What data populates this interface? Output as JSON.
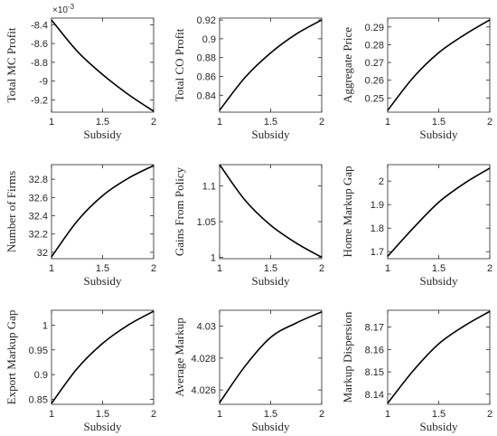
{
  "chart_data": [
    {
      "type": "line",
      "xlabel": "Subsidy",
      "ylabel": "Total MC Profit",
      "xlim": [
        1,
        2
      ],
      "xticks": [
        "1",
        "1.5",
        "2"
      ],
      "ylim": [
        -0.00933,
        -0.00833
      ],
      "yticks": [
        -0.0084,
        -0.0086,
        -0.0088,
        -0.009,
        -0.0092
      ],
      "ytick_labels": [
        "-8.4",
        "-8.6",
        "-8.8",
        "-9",
        "-9.2"
      ],
      "exponent": "×10",
      "exponent_power": "-3",
      "x": [
        1,
        1.25,
        1.5,
        1.75,
        2
      ],
      "y": [
        -0.00835,
        -0.00868,
        -0.00893,
        -0.00914,
        -0.00932
      ]
    },
    {
      "type": "line",
      "xlabel": "Subsidy",
      "ylabel": "Total CO Profit",
      "xlim": [
        1,
        2
      ],
      "xticks": [
        "1",
        "1.5",
        "2"
      ],
      "ylim": [
        0.822,
        0.922
      ],
      "yticks": [
        0.84,
        0.86,
        0.88,
        0.9,
        0.92
      ],
      "ytick_labels": [
        "0.84",
        "0.86",
        "0.88",
        "0.9",
        "0.92"
      ],
      "x": [
        1,
        1.25,
        1.5,
        1.75,
        2
      ],
      "y": [
        0.824,
        0.859,
        0.885,
        0.905,
        0.92
      ]
    },
    {
      "type": "line",
      "xlabel": "Subsidy",
      "ylabel": "Aggregate Price",
      "xlim": [
        1,
        2
      ],
      "xticks": [
        "1",
        "1.5",
        "2"
      ],
      "ylim": [
        0.242,
        0.295
      ],
      "yticks": [
        0.25,
        0.26,
        0.27,
        0.28,
        0.29
      ],
      "ytick_labels": [
        "0.25",
        "0.26",
        "0.27",
        "0.28",
        "0.29"
      ],
      "x": [
        1,
        1.25,
        1.5,
        1.75,
        2
      ],
      "y": [
        0.243,
        0.2615,
        0.2755,
        0.2855,
        0.294
      ]
    },
    {
      "type": "line",
      "xlabel": "Subsidy",
      "ylabel": "Number of Firms",
      "xlim": [
        1,
        2
      ],
      "xticks": [
        "1",
        "1.5",
        "2"
      ],
      "ylim": [
        31.93,
        32.96
      ],
      "yticks": [
        32,
        32.2,
        32.4,
        32.6,
        32.8
      ],
      "ytick_labels": [
        "32",
        "32.2",
        "32.4",
        "32.6",
        "32.8"
      ],
      "x": [
        1,
        1.25,
        1.5,
        1.75,
        2
      ],
      "y": [
        31.95,
        32.34,
        32.62,
        32.81,
        32.95
      ]
    },
    {
      "type": "line",
      "xlabel": "Subsidy",
      "ylabel": "Gains From Policy",
      "xlim": [
        1,
        2
      ],
      "xticks": [
        "1",
        "1.5",
        "2"
      ],
      "ylim": [
        0.998,
        1.13
      ],
      "yticks": [
        1,
        1.05,
        1.1
      ],
      "ytick_labels": [
        "1",
        "1.05",
        "1.1"
      ],
      "x": [
        1,
        1.25,
        1.5,
        1.75,
        2
      ],
      "y": [
        1.13,
        1.08,
        1.045,
        1.02,
        1.0
      ]
    },
    {
      "type": "line",
      "xlabel": "Subsidy",
      "ylabel": "Home Markup Gap",
      "xlim": [
        1,
        2
      ],
      "xticks": [
        "1",
        "1.5",
        "2"
      ],
      "ylim": [
        1.67,
        2.07
      ],
      "yticks": [
        1.7,
        1.8,
        1.9,
        2
      ],
      "ytick_labels": [
        "1.7",
        "1.8",
        "1.9",
        "2"
      ],
      "x": [
        1,
        1.25,
        1.5,
        1.75,
        2
      ],
      "y": [
        1.68,
        1.8,
        1.91,
        1.99,
        2.055
      ]
    },
    {
      "type": "line",
      "xlabel": "Subsidy",
      "ylabel": "Export Markup Gap",
      "xlim": [
        1,
        2
      ],
      "xticks": [
        "1",
        "1.5",
        "2"
      ],
      "ylim": [
        0.84,
        1.03
      ],
      "yticks": [
        0.85,
        0.9,
        0.95,
        1
      ],
      "ytick_labels": [
        "0.85",
        "0.9",
        "0.95",
        "1"
      ],
      "x": [
        1,
        1.25,
        1.5,
        1.75,
        2
      ],
      "y": [
        0.842,
        0.912,
        0.963,
        1.0,
        1.028
      ]
    },
    {
      "type": "line",
      "xlabel": "Subsidy",
      "ylabel": "Average Markup",
      "xlim": [
        1,
        2
      ],
      "xticks": [
        "1",
        "1.5",
        "2"
      ],
      "ylim": [
        4.0251,
        4.031
      ],
      "yticks": [
        4.026,
        4.028,
        4.03
      ],
      "ytick_labels": [
        "4.026",
        "4.028",
        "4.03"
      ],
      "x": [
        1,
        1.25,
        1.5,
        1.75,
        2
      ],
      "y": [
        4.0252,
        4.0275,
        4.0293,
        4.0302,
        4.0309
      ]
    },
    {
      "type": "line",
      "xlabel": "Subsidy",
      "ylabel": "Markup Dispersion",
      "xlim": [
        1,
        2
      ],
      "xticks": [
        "1",
        "1.5",
        "2"
      ],
      "ylim": [
        8.1355,
        8.1775
      ],
      "yticks": [
        8.14,
        8.15,
        8.16,
        8.17
      ],
      "ytick_labels": [
        "8.14",
        "8.15",
        "8.16",
        "8.17"
      ],
      "x": [
        1,
        1.25,
        1.5,
        1.75,
        2
      ],
      "y": [
        8.136,
        8.1505,
        8.1625,
        8.1705,
        8.177
      ]
    }
  ]
}
